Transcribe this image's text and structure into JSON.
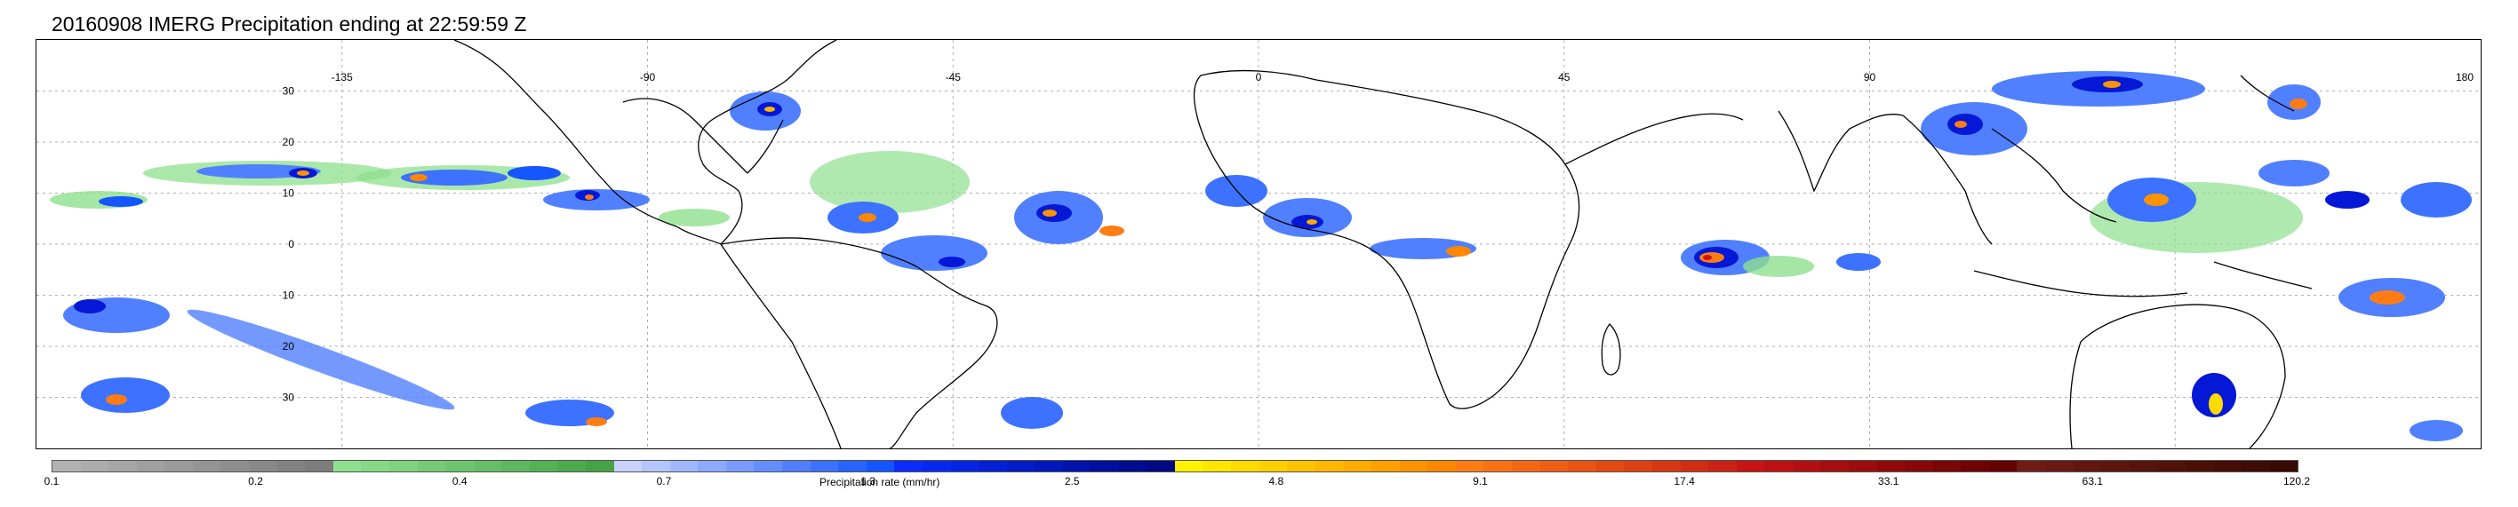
{
  "title": "20160908 IMERG Precipitation ending at 22:59:59 Z",
  "map": {
    "lon_labels": [
      "-135",
      "-90",
      "-45",
      "0",
      "45",
      "90",
      "180"
    ],
    "lat_labels": [
      "30",
      "20",
      "10",
      "0",
      "10",
      "20",
      "30"
    ],
    "grid": true,
    "coastline_color": "#000000"
  },
  "colorbar": {
    "title": "Precipitation rate (mm/hr)",
    "tick_labels": [
      "0.1",
      "0.2",
      "0.4",
      "0.7",
      "1.3",
      "2.5",
      "4.8",
      "9.1",
      "17.4",
      "33.1",
      "63.1",
      "120.2"
    ],
    "colors": [
      "#b2b2b2",
      "#acacac",
      "#a6a6a6",
      "#a0a0a0",
      "#9a9a9a",
      "#949494",
      "#8e8e8e",
      "#888888",
      "#828282",
      "#7c7c7c",
      "#8ee08e",
      "#86da86",
      "#7ed37e",
      "#76cc76",
      "#6ec56e",
      "#66be66",
      "#5eb75e",
      "#56b056",
      "#4ea94e",
      "#46a246",
      "#c8d4ff",
      "#b4c6ff",
      "#a0b8ff",
      "#8caaff",
      "#789cff",
      "#648eff",
      "#5080ff",
      "#3c72ff",
      "#2864ff",
      "#1456ff",
      "#0a2cff",
      "#0828f2",
      "#0624e4",
      "#0420d6",
      "#021cc8",
      "#0018ba",
      "#0014ac",
      "#00109e",
      "#000c90",
      "#000882",
      "#fff200",
      "#ffe600",
      "#ffda00",
      "#ffcf00",
      "#ffc300",
      "#ffb700",
      "#ffab00",
      "#ff9f00",
      "#ff9300",
      "#ff8700",
      "#ff7c14",
      "#fa7214",
      "#f46814",
      "#ee5e14",
      "#e85414",
      "#e24a14",
      "#dc4014",
      "#d63614",
      "#d02c14",
      "#ca2214",
      "#c81414",
      "#bd1212",
      "#b21010",
      "#a70e0e",
      "#9c0c0c",
      "#910a0a",
      "#860808",
      "#7b0606",
      "#700404",
      "#650202",
      "#6e1c14",
      "#681a12",
      "#621810",
      "#5c160e",
      "#56140c",
      "#50120a",
      "#4a1008",
      "#440e06",
      "#3e0c04",
      "#380a02"
    ]
  }
}
